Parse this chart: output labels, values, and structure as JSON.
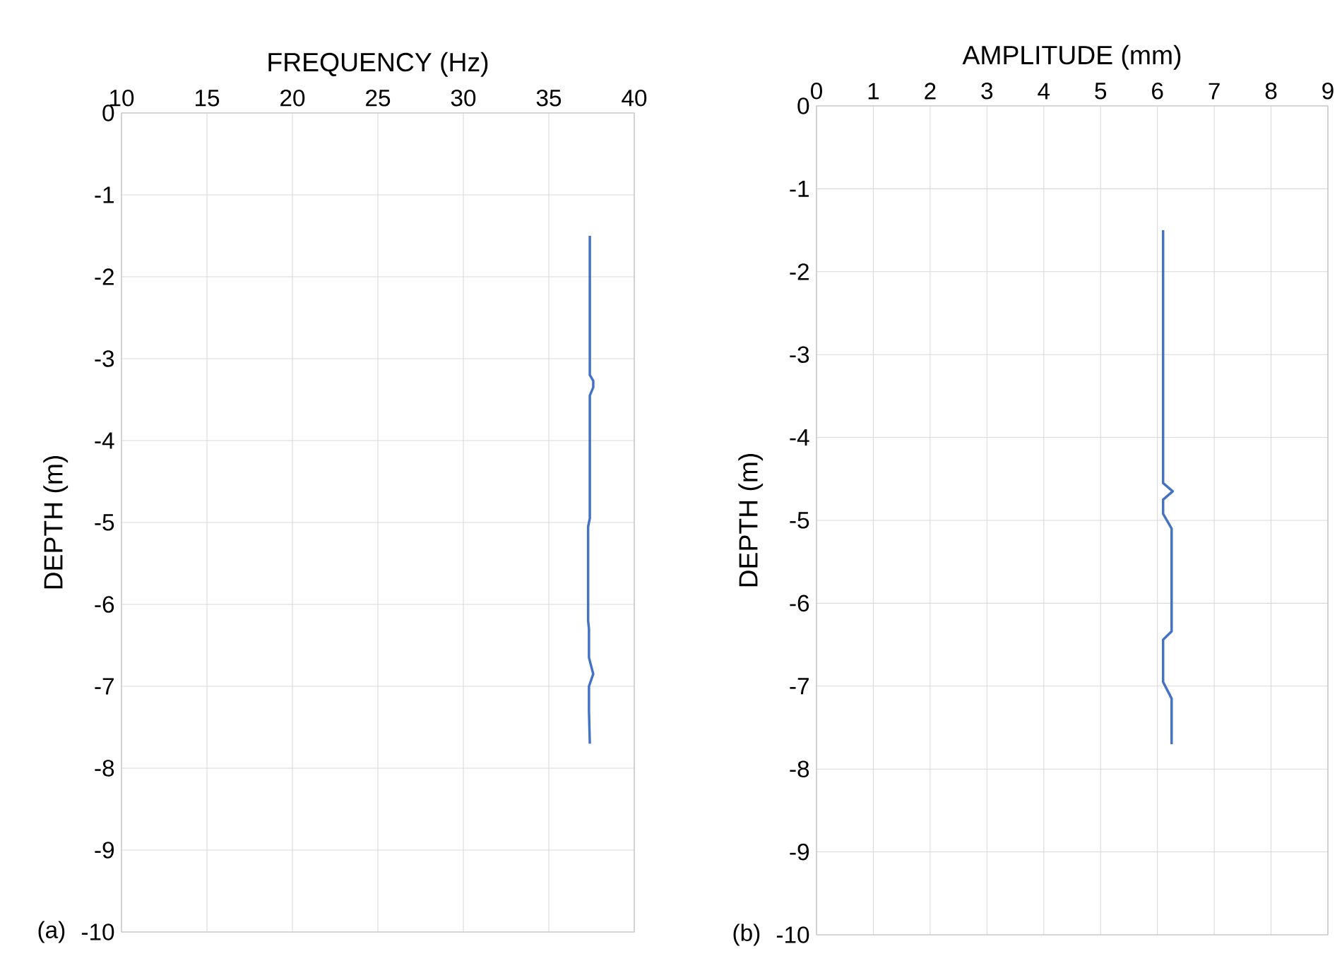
{
  "chart_data": [
    {
      "type": "line",
      "xlabel": "FREQUENCY (Hz)",
      "ylabel": "DEPTH (m)",
      "annotations": [
        "(a)"
      ],
      "grid": true,
      "xlim": [
        10,
        40
      ],
      "ylim": [
        -10,
        0
      ],
      "xticks": [
        10,
        15,
        20,
        25,
        30,
        35,
        40
      ],
      "yticks": [
        -10,
        -9,
        -8,
        -7,
        -6,
        -5,
        -4,
        -3,
        -2,
        -1,
        0
      ],
      "series": [
        {
          "color": "#4472c4",
          "x": [
            37.4,
            37.4,
            37.6,
            37.6,
            37.4,
            37.4,
            37.3,
            37.3,
            37.35,
            37.35,
            37.6,
            37.35,
            37.35,
            37.4
          ],
          "values": [
            -1.5,
            -3.2,
            -3.27,
            -3.35,
            -3.45,
            -4.95,
            -5.05,
            -6.2,
            -6.3,
            -6.65,
            -6.85,
            -7.0,
            -7.3,
            -7.7
          ]
        }
      ]
    },
    {
      "type": "line",
      "xlabel": "AMPLITUDE (mm)",
      "ylabel": "DEPTH (m)",
      "annotations": [
        "(b)"
      ],
      "grid": true,
      "xlim": [
        0,
        9
      ],
      "ylim": [
        -10,
        0
      ],
      "xticks": [
        0,
        1,
        2,
        3,
        4,
        5,
        6,
        7,
        8,
        9
      ],
      "yticks": [
        -10,
        -9,
        -8,
        -7,
        -6,
        -5,
        -4,
        -3,
        -2,
        -1,
        0
      ],
      "series": [
        {
          "color": "#4472c4",
          "x": [
            6.1,
            6.1,
            6.27,
            6.1,
            6.1,
            6.25,
            6.25,
            6.1,
            6.1,
            6.25,
            6.25
          ],
          "values": [
            -1.5,
            -4.55,
            -4.65,
            -4.75,
            -4.92,
            -5.1,
            -6.34,
            -6.44,
            -6.95,
            -7.15,
            -7.7
          ]
        }
      ]
    }
  ]
}
